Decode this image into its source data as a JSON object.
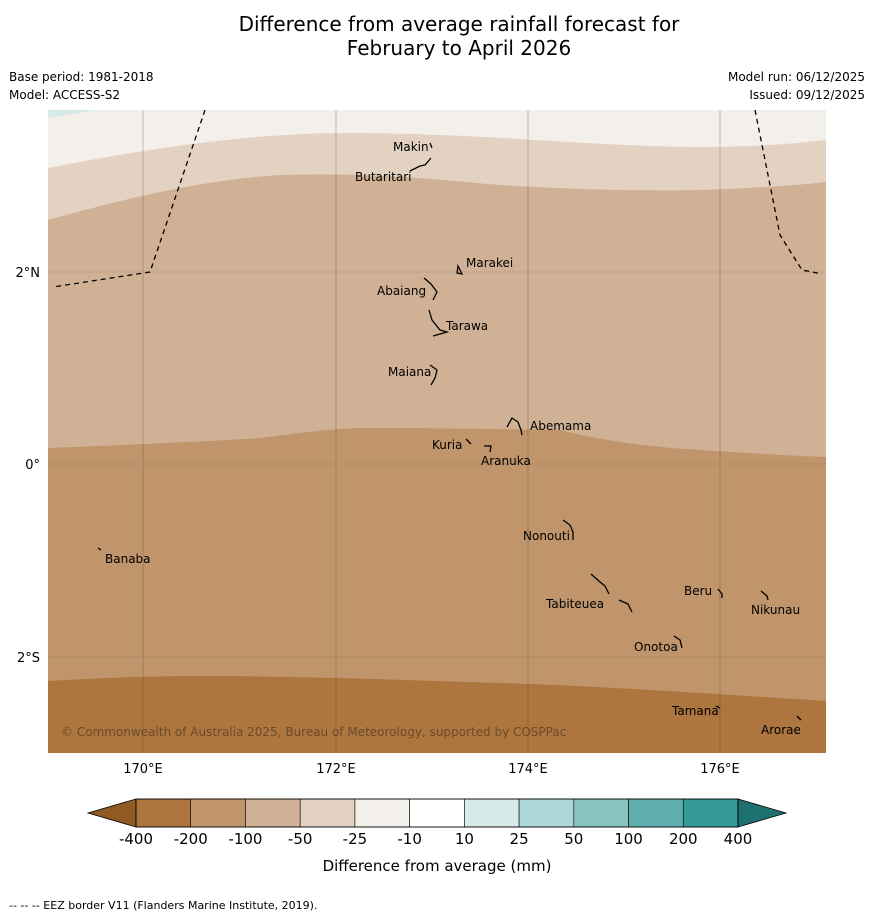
{
  "title_line1": "Difference from average rainfall forecast for",
  "title_line2": "February to April 2026",
  "base_period": "Base period: 1981-2018",
  "model": "Model: ACCESS-S2",
  "model_run": "Model run: 06/12/2025",
  "issued": "Issued: 09/12/2025",
  "lat_labels": [
    "2°N",
    "0°",
    "2°S"
  ],
  "lon_labels": [
    "170°E",
    "172°E",
    "174°E",
    "176°E"
  ],
  "islands": {
    "makin": "Makin",
    "butaritari": "Butaritari",
    "marakei": "Marakei",
    "abaiang": "Abaiang",
    "tarawa": "Tarawa",
    "maiana": "Maiana",
    "abemama": "Abemama",
    "kuria": "Kuria",
    "aranuka": "Aranuka",
    "nonouti": "Nonouti",
    "banaba": "Banaba",
    "beru": "Beru",
    "nikunau": "Nikunau",
    "tabiteuea": "Tabiteuea",
    "onotoa": "Onotoa",
    "tamana": "Tamana",
    "arorae": "Arorae"
  },
  "copyright": "© Commonwealth of Australia 2025, Bureau of Meteorology, supported by COSPPac",
  "colorbar": {
    "ticks": [
      "-400",
      "-200",
      "-100",
      "-50",
      "-25",
      "-10",
      "10",
      "25",
      "50",
      "100",
      "200",
      "400"
    ],
    "colors": [
      "#ad763f",
      "#c0956b",
      "#d1b195",
      "#e3d2c2",
      "#f3efea",
      "#ffffff",
      "#d6eaea",
      "#b0d7d7",
      "#88c3c2",
      "#5faeae",
      "#359b9a"
    ],
    "under_color": "#915a24",
    "over_color": "#1f7070",
    "label": "Difference from average (mm)"
  },
  "footnote": "--  --  -- EEZ border V11 (Flanders Marine Institute, 2019)."
}
